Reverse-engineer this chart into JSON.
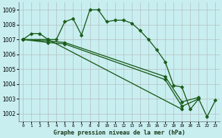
{
  "title": "Graphe pression niveau de la mer (hPa)",
  "bg_color": "#c8eef0",
  "grid_major_color": "#b0b0b0",
  "grid_minor_color": "#d8d8d8",
  "line_color": "#1a5c1a",
  "ylim": [
    1001.5,
    1009.5
  ],
  "xlim": [
    -0.5,
    23.5
  ],
  "yticks": [
    1002,
    1003,
    1004,
    1005,
    1006,
    1007,
    1008,
    1009
  ],
  "xticks": [
    0,
    1,
    2,
    3,
    4,
    5,
    6,
    7,
    8,
    9,
    10,
    11,
    12,
    13,
    14,
    15,
    16,
    17,
    18,
    19,
    20,
    21,
    22,
    23
  ],
  "series": [
    [
      1007.0,
      1007.4,
      1007.4,
      1007.0,
      1007.0,
      1008.2,
      1008.4,
      1007.3,
      1009.0,
      1009.0,
      1008.2,
      1008.3,
      1008.3,
      1008.1,
      1007.6,
      1007.0,
      1006.3,
      1005.5,
      1003.9,
      1003.8,
      1002.3,
      1003.0,
      1001.8,
      1002.9
    ],
    [
      1007.0,
      null,
      null,
      1007.0,
      null,
      null,
      null,
      null,
      null,
      null,
      null,
      null,
      null,
      null,
      null,
      null,
      null,
      null,
      null,
      1002.3,
      null,
      null,
      null,
      null
    ],
    [
      1007.0,
      null,
      null,
      1006.9,
      null,
      1006.8,
      null,
      null,
      null,
      null,
      null,
      null,
      null,
      null,
      null,
      null,
      null,
      1004.5,
      null,
      1002.8,
      null,
      1003.1,
      null,
      null
    ],
    [
      1007.0,
      null,
      null,
      1006.8,
      null,
      1006.7,
      null,
      null,
      null,
      null,
      null,
      null,
      null,
      null,
      null,
      null,
      null,
      1004.3,
      null,
      1002.5,
      null,
      1003.0,
      null,
      null
    ]
  ],
  "marker": "D",
  "markersize": 2.5,
  "linewidth": 1.0
}
